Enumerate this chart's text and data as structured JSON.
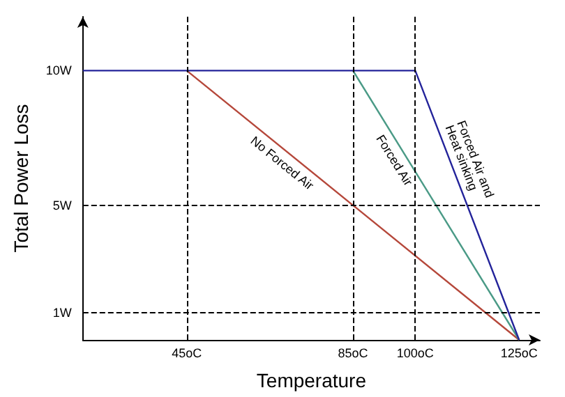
{
  "chart_data": {
    "type": "line",
    "xlabel": "Temperature",
    "ylabel": "Total Power Loss",
    "xlim": [
      20,
      130
    ],
    "ylim": [
      0,
      12
    ],
    "xticks": [
      {
        "value": 45,
        "label": "45oC"
      },
      {
        "value": 85,
        "label": "85oC"
      },
      {
        "value": 100,
        "label": "100oC"
      },
      {
        "value": 125,
        "label": "125oC"
      }
    ],
    "yticks": [
      {
        "value": 1,
        "label": "1W"
      },
      {
        "value": 5,
        "label": "5W"
      },
      {
        "value": 10,
        "label": "10W"
      }
    ],
    "series": [
      {
        "name": "No Forced Air",
        "color": "#b5473a",
        "x": [
          45,
          125
        ],
        "values": [
          10,
          0
        ]
      },
      {
        "name": "Forced Air",
        "color": "#4a9a86",
        "x": [
          85,
          125
        ],
        "values": [
          10,
          0
        ]
      },
      {
        "name": "Forced Air and Heat sinking",
        "color": "#23239a",
        "x": [
          20,
          100,
          125
        ],
        "values": [
          10,
          10,
          0
        ]
      }
    ],
    "ref_lines": [
      {
        "axis": "x",
        "value": 45,
        "line_style": "dashed",
        "color": "#000000"
      },
      {
        "axis": "x",
        "value": 85,
        "line_style": "dashed",
        "color": "#000000"
      },
      {
        "axis": "x",
        "value": 100,
        "line_style": "dashed",
        "color": "#000000"
      },
      {
        "axis": "y",
        "value": 5,
        "line_style": "dashed",
        "color": "#000000"
      },
      {
        "axis": "y",
        "value": 1,
        "line_style": "dashed",
        "color": "#000000"
      }
    ],
    "grid": false,
    "legend": false,
    "marker": "none",
    "line_style": "solid"
  }
}
